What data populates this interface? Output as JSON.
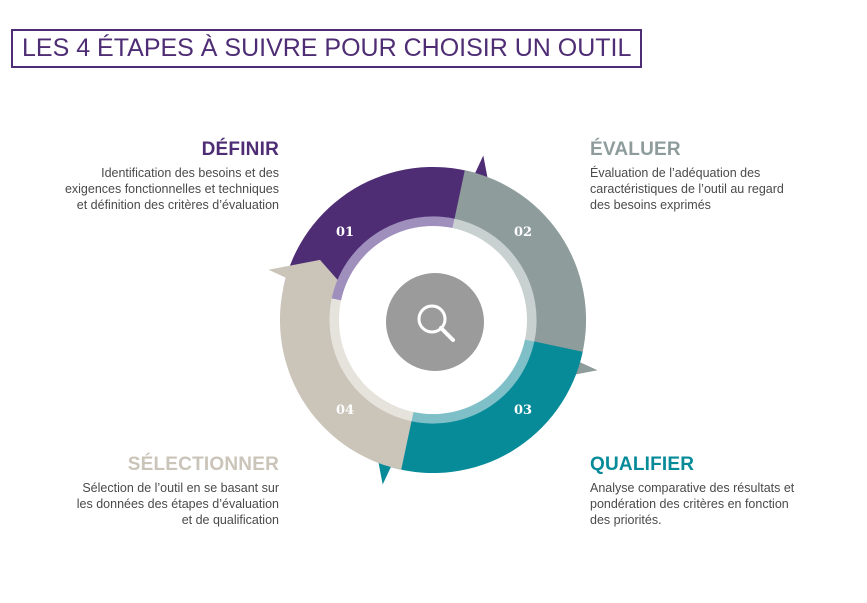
{
  "title": "LES 4 ÉTAPES À SUIVRE POUR CHOISIR UN OUTIL",
  "steps": [
    {
      "number": "01",
      "heading": "DÉFINIR",
      "color": "#4e2d74",
      "ring_color": "#9f8fbd",
      "lines": [
        "Identification des besoins et des",
        "exigences fonctionnelles et techniques",
        "et définition des critères d’évaluation"
      ]
    },
    {
      "number": "02",
      "heading": "ÉVALUER",
      "color": "#8e9c9c",
      "ring_color": "#c9d0d0",
      "lines": [
        "Évaluation de l’adéquation des",
        "caractéristiques de l’outil au regard",
        "des besoins exprimés"
      ]
    },
    {
      "number": "03",
      "heading": "QUALIFIER",
      "color": "#078b99",
      "ring_color": "#7fc0c8",
      "lines": [
        "Analyse comparative des résultats et",
        "pondération des critères en fonction",
        "des priorités."
      ]
    },
    {
      "number": "04",
      "heading": "SÉLECTIONNER",
      "color": "#cac4b9",
      "ring_color": "#e6e2dc",
      "lines": [
        "Sélection de l’outil en se basant sur",
        "les données des étapes d’évaluation",
        "et de qualification"
      ]
    }
  ],
  "center_icon": "magnifier-icon",
  "center_color": "#9b9b9b"
}
